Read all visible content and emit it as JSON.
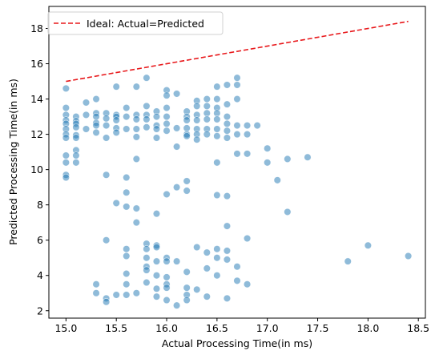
{
  "chart_data": {
    "type": "scatter",
    "title": "",
    "xlabel": "Actual Processing Time(in ms)",
    "ylabel": "Predicted Processing Time(in ms)",
    "xlim": [
      14.83,
      18.57
    ],
    "ylim": [
      1.58,
      19.25
    ],
    "xticks": [
      15.0,
      15.5,
      16.0,
      16.5,
      17.0,
      17.5,
      18.0,
      18.5
    ],
    "xtick_labels": [
      "15.0",
      "15.5",
      "16.0",
      "16.5",
      "17.0",
      "17.5",
      "18.0",
      "18.5"
    ],
    "yticks": [
      2,
      4,
      6,
      8,
      10,
      12,
      14,
      16,
      18
    ],
    "ytick_labels": [
      "2",
      "4",
      "6",
      "8",
      "10",
      "12",
      "14",
      "16",
      "18"
    ],
    "grid": false,
    "legend": {
      "placement": "top-left",
      "entries": [
        "Ideal: Actual=Predicted"
      ]
    },
    "colors": {
      "points": "#1f77b4",
      "ideal_line": "#e8191c"
    },
    "ideal_line": {
      "name": "Ideal: Actual=Predicted",
      "x": [
        15.0,
        18.4
      ],
      "y": [
        15.0,
        18.4
      ]
    },
    "points": [
      [
        15.0,
        14.6
      ],
      [
        15.0,
        13.5
      ],
      [
        15.0,
        13.1
      ],
      [
        15.0,
        12.8
      ],
      [
        15.0,
        12.6
      ],
      [
        15.0,
        12.3
      ],
      [
        15.0,
        12.0
      ],
      [
        15.0,
        11.8
      ],
      [
        15.0,
        10.8
      ],
      [
        15.0,
        10.4
      ],
      [
        15.0,
        9.7
      ],
      [
        15.0,
        9.55
      ],
      [
        15.1,
        13.0
      ],
      [
        15.1,
        12.75
      ],
      [
        15.1,
        12.6
      ],
      [
        15.1,
        12.4
      ],
      [
        15.1,
        11.95
      ],
      [
        15.1,
        11.8
      ],
      [
        15.1,
        11.1
      ],
      [
        15.1,
        10.8
      ],
      [
        15.1,
        10.4
      ],
      [
        15.2,
        13.8
      ],
      [
        15.2,
        13.1
      ],
      [
        15.2,
        12.3
      ],
      [
        15.3,
        14.0
      ],
      [
        15.3,
        13.2
      ],
      [
        15.3,
        13.0
      ],
      [
        15.3,
        12.65
      ],
      [
        15.3,
        12.5
      ],
      [
        15.3,
        12.1
      ],
      [
        15.4,
        13.2
      ],
      [
        15.4,
        12.9
      ],
      [
        15.4,
        12.5
      ],
      [
        15.4,
        11.8
      ],
      [
        15.5,
        14.7
      ],
      [
        15.5,
        13.1
      ],
      [
        15.5,
        13.0
      ],
      [
        15.5,
        12.8
      ],
      [
        15.5,
        12.35
      ],
      [
        15.5,
        12.1
      ],
      [
        15.6,
        13.5
      ],
      [
        15.6,
        13.0
      ],
      [
        15.6,
        12.3
      ],
      [
        15.7,
        14.7
      ],
      [
        15.7,
        13.1
      ],
      [
        15.7,
        12.85
      ],
      [
        15.7,
        12.3
      ],
      [
        15.7,
        11.85
      ],
      [
        15.8,
        15.2
      ],
      [
        15.8,
        13.6
      ],
      [
        15.8,
        13.1
      ],
      [
        15.8,
        12.85
      ],
      [
        15.8,
        12.4
      ],
      [
        15.9,
        13.3
      ],
      [
        15.9,
        13.0
      ],
      [
        15.9,
        12.5
      ],
      [
        15.9,
        12.3
      ],
      [
        15.9,
        11.8
      ],
      [
        16.0,
        14.5
      ],
      [
        16.0,
        14.2
      ],
      [
        16.0,
        13.5
      ],
      [
        16.0,
        13.0
      ],
      [
        16.0,
        12.6
      ],
      [
        16.0,
        12.2
      ],
      [
        16.1,
        14.3
      ],
      [
        16.1,
        12.35
      ],
      [
        16.1,
        11.3
      ],
      [
        16.2,
        13.3
      ],
      [
        16.2,
        13.0
      ],
      [
        16.2,
        12.8
      ],
      [
        16.2,
        12.35
      ],
      [
        16.2,
        12.0
      ],
      [
        16.2,
        11.9
      ],
      [
        16.3,
        13.9
      ],
      [
        16.3,
        13.6
      ],
      [
        16.3,
        13.1
      ],
      [
        16.3,
        12.8
      ],
      [
        16.3,
        12.3
      ],
      [
        16.3,
        12.0
      ],
      [
        16.3,
        11.7
      ],
      [
        16.4,
        14.0
      ],
      [
        16.4,
        13.6
      ],
      [
        16.4,
        13.2
      ],
      [
        16.4,
        12.85
      ],
      [
        16.4,
        12.3
      ],
      [
        16.4,
        12.0
      ],
      [
        16.5,
        14.7
      ],
      [
        16.5,
        14.0
      ],
      [
        16.5,
        13.5
      ],
      [
        16.5,
        13.2
      ],
      [
        16.5,
        12.85
      ],
      [
        16.5,
        12.3
      ],
      [
        16.5,
        11.9
      ],
      [
        16.6,
        14.8
      ],
      [
        16.6,
        13.7
      ],
      [
        16.6,
        13.0
      ],
      [
        16.6,
        12.6
      ],
      [
        16.6,
        12.2
      ],
      [
        16.6,
        11.8
      ],
      [
        16.7,
        15.2
      ],
      [
        16.7,
        14.8
      ],
      [
        16.7,
        14.0
      ],
      [
        16.7,
        12.5
      ],
      [
        16.7,
        12.0
      ],
      [
        16.7,
        10.9
      ],
      [
        16.8,
        12.5
      ],
      [
        16.8,
        12.0
      ],
      [
        16.8,
        10.9
      ],
      [
        16.9,
        12.5
      ],
      [
        17.0,
        11.2
      ],
      [
        17.0,
        10.4
      ],
      [
        17.1,
        9.4
      ],
      [
        17.2,
        10.6
      ],
      [
        17.2,
        7.6
      ],
      [
        17.4,
        10.7
      ],
      [
        15.4,
        9.7
      ],
      [
        15.6,
        9.55
      ],
      [
        15.6,
        8.7
      ],
      [
        15.5,
        8.1
      ],
      [
        15.6,
        7.9
      ],
      [
        15.7,
        10.6
      ],
      [
        15.7,
        7.8
      ],
      [
        15.7,
        7.0
      ],
      [
        15.9,
        7.5
      ],
      [
        16.0,
        8.6
      ],
      [
        16.1,
        9.0
      ],
      [
        16.2,
        9.35
      ],
      [
        16.2,
        8.8
      ],
      [
        16.5,
        10.4
      ],
      [
        16.5,
        8.55
      ],
      [
        16.6,
        8.5
      ],
      [
        16.6,
        6.8
      ],
      [
        16.8,
        6.1
      ],
      [
        15.4,
        6.0
      ],
      [
        15.3,
        3.5
      ],
      [
        15.3,
        3.0
      ],
      [
        15.4,
        2.7
      ],
      [
        15.4,
        2.5
      ],
      [
        15.5,
        2.9
      ],
      [
        15.6,
        5.5
      ],
      [
        15.6,
        5.1
      ],
      [
        15.6,
        4.1
      ],
      [
        15.6,
        3.5
      ],
      [
        15.6,
        2.9
      ],
      [
        15.7,
        3.0
      ],
      [
        15.8,
        5.8
      ],
      [
        15.8,
        5.5
      ],
      [
        15.8,
        5.0
      ],
      [
        15.8,
        4.5
      ],
      [
        15.8,
        4.3
      ],
      [
        15.8,
        3.6
      ],
      [
        15.9,
        5.7
      ],
      [
        15.9,
        5.6
      ],
      [
        15.9,
        4.8
      ],
      [
        15.9,
        4.0
      ],
      [
        15.9,
        3.25
      ],
      [
        15.9,
        2.8
      ],
      [
        16.0,
        5.0
      ],
      [
        16.0,
        4.8
      ],
      [
        16.0,
        3.9
      ],
      [
        16.0,
        3.5
      ],
      [
        16.0,
        3.3
      ],
      [
        16.0,
        2.6
      ],
      [
        16.1,
        4.8
      ],
      [
        16.1,
        2.3
      ],
      [
        16.2,
        4.2
      ],
      [
        16.2,
        3.3
      ],
      [
        16.2,
        2.9
      ],
      [
        16.2,
        2.6
      ],
      [
        16.3,
        5.6
      ],
      [
        16.3,
        3.2
      ],
      [
        16.4,
        5.3
      ],
      [
        16.4,
        4.4
      ],
      [
        16.4,
        2.8
      ],
      [
        16.5,
        5.5
      ],
      [
        16.5,
        5.0
      ],
      [
        16.5,
        4.0
      ],
      [
        16.6,
        5.4
      ],
      [
        16.6,
        4.9
      ],
      [
        16.6,
        2.7
      ],
      [
        16.7,
        4.5
      ],
      [
        16.7,
        3.7
      ],
      [
        16.8,
        3.5
      ],
      [
        17.8,
        4.8
      ],
      [
        18.0,
        5.7
      ],
      [
        18.4,
        5.1
      ]
    ]
  }
}
